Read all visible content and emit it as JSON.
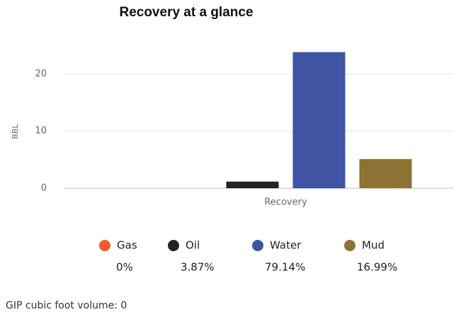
{
  "chart_data": {
    "type": "bar",
    "title": "Recovery at a glance",
    "y_label": "BBL",
    "categories": [
      "Recovery"
    ],
    "series": [
      {
        "name": "Gas",
        "color": "#f15a2b",
        "values": [
          0
        ],
        "share": "0%"
      },
      {
        "name": "Oil",
        "color": "#222222",
        "values": [
          1.16
        ],
        "share": "3.87%"
      },
      {
        "name": "Water",
        "color": "#3f55a3",
        "values": [
          23.8
        ],
        "share": "79.14%"
      },
      {
        "name": "Mud",
        "color": "#8c7334",
        "values": [
          5.1
        ],
        "share": "16.99%"
      }
    ],
    "ylim": [
      0,
      25
    ],
    "yticks": [
      0,
      10,
      20
    ],
    "grid": true
  },
  "footer": "GIP cubic foot volume: 0"
}
